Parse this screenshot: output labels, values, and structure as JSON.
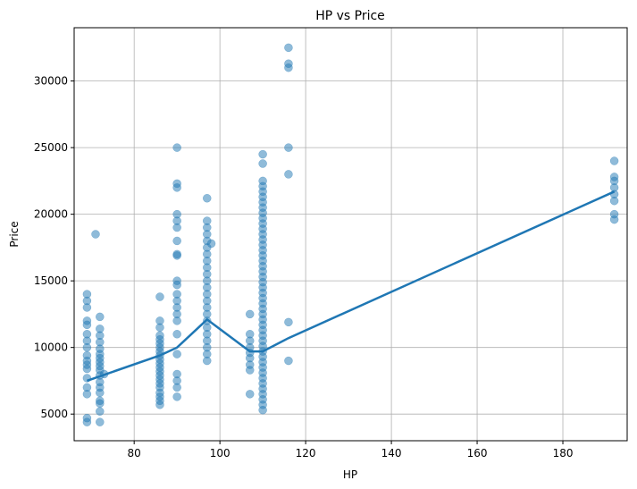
{
  "chart_data": {
    "type": "scatter",
    "title": "HP vs Price",
    "xlabel": "HP",
    "ylabel": "Price",
    "xlim": [
      66,
      195
    ],
    "ylim": [
      3000,
      34000
    ],
    "x_ticks": [
      80,
      100,
      120,
      140,
      160,
      180
    ],
    "y_ticks": [
      5000,
      10000,
      15000,
      20000,
      25000,
      30000
    ],
    "grid": true,
    "colors": {
      "points": "#1f77b4",
      "line": "#1f77b4",
      "grid": "#b0b0b0"
    },
    "points": [
      {
        "x": 69,
        "y": 4400
      },
      {
        "x": 69,
        "y": 4700
      },
      {
        "x": 69,
        "y": 6500
      },
      {
        "x": 69,
        "y": 7000
      },
      {
        "x": 69,
        "y": 7700
      },
      {
        "x": 69,
        "y": 8400
      },
      {
        "x": 69,
        "y": 8700
      },
      {
        "x": 69,
        "y": 9000
      },
      {
        "x": 69,
        "y": 9400
      },
      {
        "x": 69,
        "y": 10000
      },
      {
        "x": 69,
        "y": 10500
      },
      {
        "x": 69,
        "y": 11000
      },
      {
        "x": 69,
        "y": 11700
      },
      {
        "x": 69,
        "y": 12000
      },
      {
        "x": 69,
        "y": 13000
      },
      {
        "x": 69,
        "y": 13500
      },
      {
        "x": 69,
        "y": 14000
      },
      {
        "x": 71,
        "y": 18500
      },
      {
        "x": 72,
        "y": 4400
      },
      {
        "x": 72,
        "y": 5200
      },
      {
        "x": 72,
        "y": 5800
      },
      {
        "x": 72,
        "y": 6000
      },
      {
        "x": 72,
        "y": 6600
      },
      {
        "x": 72,
        "y": 7000
      },
      {
        "x": 72,
        "y": 7400
      },
      {
        "x": 72,
        "y": 7900
      },
      {
        "x": 72,
        "y": 8300
      },
      {
        "x": 72,
        "y": 8600
      },
      {
        "x": 72,
        "y": 8900
      },
      {
        "x": 72,
        "y": 9200
      },
      {
        "x": 72,
        "y": 9500
      },
      {
        "x": 72,
        "y": 9900
      },
      {
        "x": 72,
        "y": 10400
      },
      {
        "x": 72,
        "y": 10900
      },
      {
        "x": 72,
        "y": 11400
      },
      {
        "x": 72,
        "y": 12300
      },
      {
        "x": 73,
        "y": 8000
      },
      {
        "x": 86,
        "y": 5700
      },
      {
        "x": 86,
        "y": 6000
      },
      {
        "x": 86,
        "y": 6300
      },
      {
        "x": 86,
        "y": 6600
      },
      {
        "x": 86,
        "y": 7000
      },
      {
        "x": 86,
        "y": 7300
      },
      {
        "x": 86,
        "y": 7600
      },
      {
        "x": 86,
        "y": 7900
      },
      {
        "x": 86,
        "y": 8200
      },
      {
        "x": 86,
        "y": 8500
      },
      {
        "x": 86,
        "y": 8800
      },
      {
        "x": 86,
        "y": 9100
      },
      {
        "x": 86,
        "y": 9400
      },
      {
        "x": 86,
        "y": 9700
      },
      {
        "x": 86,
        "y": 10000
      },
      {
        "x": 86,
        "y": 10300
      },
      {
        "x": 86,
        "y": 10600
      },
      {
        "x": 86,
        "y": 10900
      },
      {
        "x": 86,
        "y": 11500
      },
      {
        "x": 86,
        "y": 12000
      },
      {
        "x": 86,
        "y": 13800
      },
      {
        "x": 90,
        "y": 6300
      },
      {
        "x": 90,
        "y": 7000
      },
      {
        "x": 90,
        "y": 7500
      },
      {
        "x": 90,
        "y": 8000
      },
      {
        "x": 90,
        "y": 9500
      },
      {
        "x": 90,
        "y": 11000
      },
      {
        "x": 90,
        "y": 12000
      },
      {
        "x": 90,
        "y": 12500
      },
      {
        "x": 90,
        "y": 13000
      },
      {
        "x": 90,
        "y": 13500
      },
      {
        "x": 90,
        "y": 14000
      },
      {
        "x": 90,
        "y": 14700
      },
      {
        "x": 90,
        "y": 15000
      },
      {
        "x": 90,
        "y": 16900
      },
      {
        "x": 90,
        "y": 17000
      },
      {
        "x": 90,
        "y": 18000
      },
      {
        "x": 90,
        "y": 19000
      },
      {
        "x": 90,
        "y": 19500
      },
      {
        "x": 90,
        "y": 20000
      },
      {
        "x": 90,
        "y": 22000
      },
      {
        "x": 90,
        "y": 22300
      },
      {
        "x": 90,
        "y": 25000
      },
      {
        "x": 97,
        "y": 9000
      },
      {
        "x": 97,
        "y": 9500
      },
      {
        "x": 97,
        "y": 10000
      },
      {
        "x": 97,
        "y": 10500
      },
      {
        "x": 97,
        "y": 11000
      },
      {
        "x": 97,
        "y": 11500
      },
      {
        "x": 97,
        "y": 12000
      },
      {
        "x": 97,
        "y": 12500
      },
      {
        "x": 97,
        "y": 13000
      },
      {
        "x": 97,
        "y": 13500
      },
      {
        "x": 97,
        "y": 14000
      },
      {
        "x": 97,
        "y": 14500
      },
      {
        "x": 97,
        "y": 15000
      },
      {
        "x": 97,
        "y": 15500
      },
      {
        "x": 97,
        "y": 16000
      },
      {
        "x": 97,
        "y": 16500
      },
      {
        "x": 97,
        "y": 17000
      },
      {
        "x": 97,
        "y": 17500
      },
      {
        "x": 97,
        "y": 18000
      },
      {
        "x": 97,
        "y": 18500
      },
      {
        "x": 97,
        "y": 19000
      },
      {
        "x": 97,
        "y": 19500
      },
      {
        "x": 97,
        "y": 21200
      },
      {
        "x": 98,
        "y": 17800
      },
      {
        "x": 107,
        "y": 6500
      },
      {
        "x": 107,
        "y": 8300
      },
      {
        "x": 107,
        "y": 8700
      },
      {
        "x": 107,
        "y": 9200
      },
      {
        "x": 107,
        "y": 9600
      },
      {
        "x": 107,
        "y": 10000
      },
      {
        "x": 107,
        "y": 10500
      },
      {
        "x": 107,
        "y": 11000
      },
      {
        "x": 107,
        "y": 12500
      },
      {
        "x": 110,
        "y": 5300
      },
      {
        "x": 110,
        "y": 5700
      },
      {
        "x": 110,
        "y": 6100
      },
      {
        "x": 110,
        "y": 6500
      },
      {
        "x": 110,
        "y": 6900
      },
      {
        "x": 110,
        "y": 7300
      },
      {
        "x": 110,
        "y": 7700
      },
      {
        "x": 110,
        "y": 8100
      },
      {
        "x": 110,
        "y": 8500
      },
      {
        "x": 110,
        "y": 8900
      },
      {
        "x": 110,
        "y": 9300
      },
      {
        "x": 110,
        "y": 9700
      },
      {
        "x": 110,
        "y": 10100
      },
      {
        "x": 110,
        "y": 10500
      },
      {
        "x": 110,
        "y": 10900
      },
      {
        "x": 110,
        "y": 11300
      },
      {
        "x": 110,
        "y": 11700
      },
      {
        "x": 110,
        "y": 12100
      },
      {
        "x": 110,
        "y": 12500
      },
      {
        "x": 110,
        "y": 12900
      },
      {
        "x": 110,
        "y": 13300
      },
      {
        "x": 110,
        "y": 13700
      },
      {
        "x": 110,
        "y": 14100
      },
      {
        "x": 110,
        "y": 14500
      },
      {
        "x": 110,
        "y": 14900
      },
      {
        "x": 110,
        "y": 15300
      },
      {
        "x": 110,
        "y": 15700
      },
      {
        "x": 110,
        "y": 16100
      },
      {
        "x": 110,
        "y": 16500
      },
      {
        "x": 110,
        "y": 16900
      },
      {
        "x": 110,
        "y": 17300
      },
      {
        "x": 110,
        "y": 17700
      },
      {
        "x": 110,
        "y": 18100
      },
      {
        "x": 110,
        "y": 18500
      },
      {
        "x": 110,
        "y": 18900
      },
      {
        "x": 110,
        "y": 19300
      },
      {
        "x": 110,
        "y": 19700
      },
      {
        "x": 110,
        "y": 20100
      },
      {
        "x": 110,
        "y": 20500
      },
      {
        "x": 110,
        "y": 20900
      },
      {
        "x": 110,
        "y": 21300
      },
      {
        "x": 110,
        "y": 21700
      },
      {
        "x": 110,
        "y": 22100
      },
      {
        "x": 110,
        "y": 22500
      },
      {
        "x": 110,
        "y": 23800
      },
      {
        "x": 110,
        "y": 24500
      },
      {
        "x": 116,
        "y": 9000
      },
      {
        "x": 116,
        "y": 11900
      },
      {
        "x": 116,
        "y": 23000
      },
      {
        "x": 116,
        "y": 25000
      },
      {
        "x": 116,
        "y": 31000
      },
      {
        "x": 116,
        "y": 31300
      },
      {
        "x": 116,
        "y": 32500
      },
      {
        "x": 192,
        "y": 19600
      },
      {
        "x": 192,
        "y": 20000
      },
      {
        "x": 192,
        "y": 21000
      },
      {
        "x": 192,
        "y": 21500
      },
      {
        "x": 192,
        "y": 22000
      },
      {
        "x": 192,
        "y": 22500
      },
      {
        "x": 192,
        "y": 22800
      },
      {
        "x": 192,
        "y": 24000
      }
    ],
    "trend_line": [
      {
        "x": 69,
        "y": 7500
      },
      {
        "x": 86,
        "y": 9400
      },
      {
        "x": 90,
        "y": 10000
      },
      {
        "x": 97,
        "y": 12100
      },
      {
        "x": 107,
        "y": 9700
      },
      {
        "x": 110,
        "y": 9700
      },
      {
        "x": 116,
        "y": 10700
      },
      {
        "x": 192,
        "y": 21700
      }
    ]
  }
}
